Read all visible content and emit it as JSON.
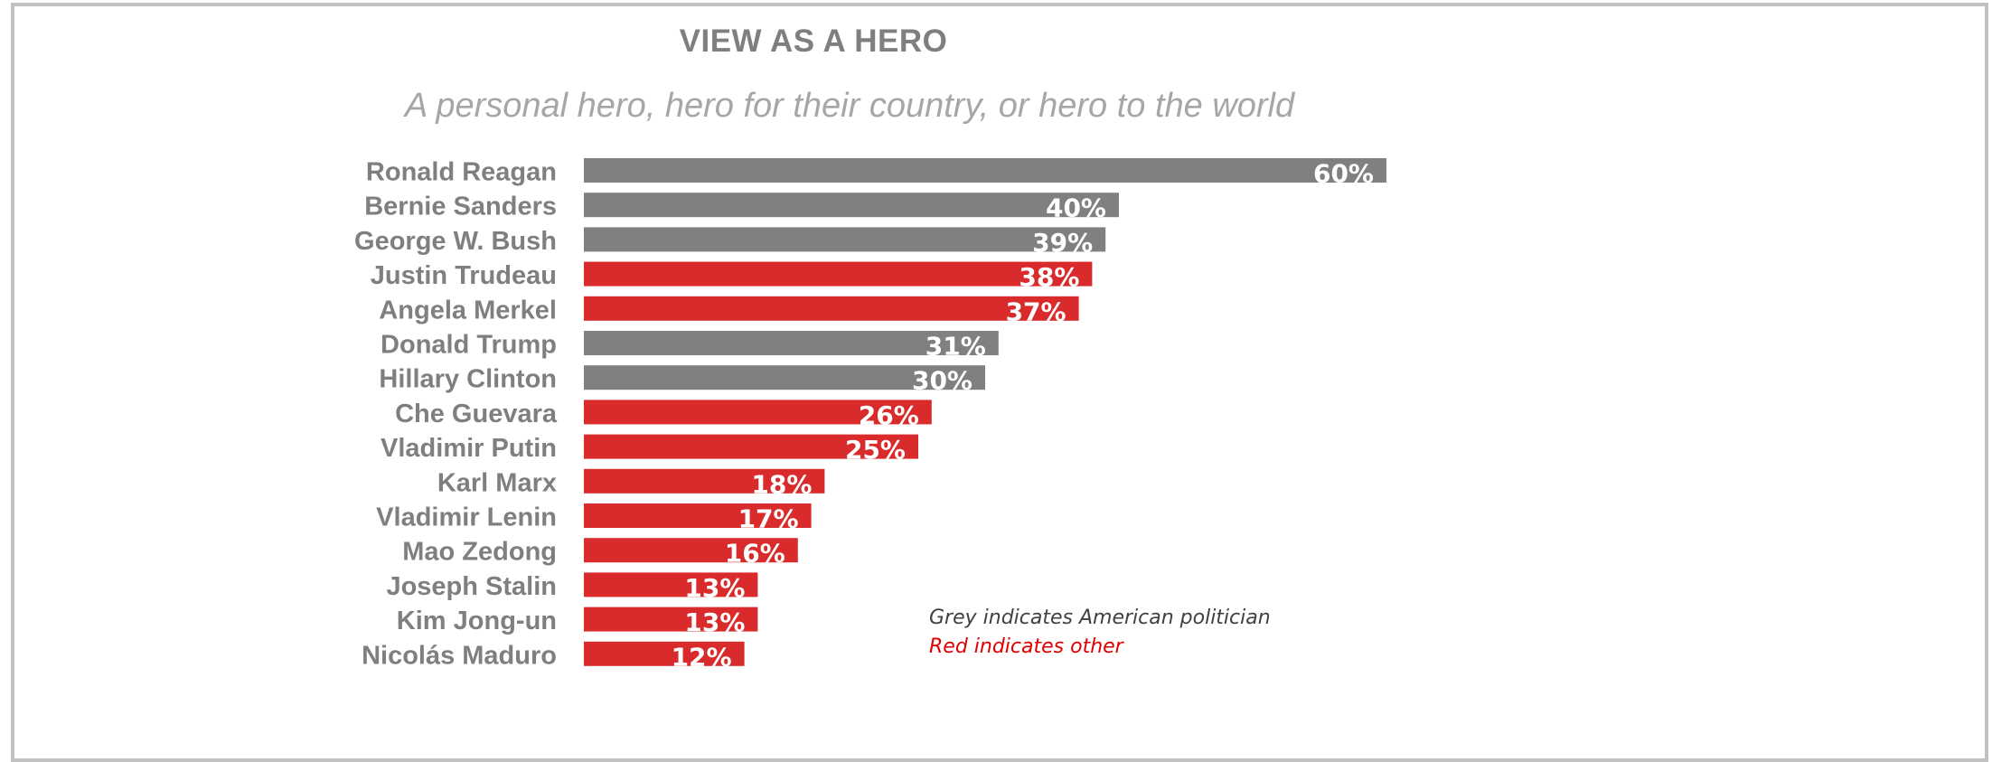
{
  "chart_data": {
    "type": "bar",
    "orientation": "horizontal",
    "title": "VIEW AS A HERO",
    "subtitle": "A personal hero, hero for their country, or hero to the world",
    "categories": [
      "Ronald Reagan",
      "Bernie Sanders",
      "George W. Bush",
      "Justin Trudeau",
      "Angela Merkel",
      "Donald Trump",
      "Hillary Clinton",
      "Che Guevara",
      "Vladimir Putin",
      "Karl Marx",
      "Vladimir Lenin",
      "Mao Zedong",
      "Joseph Stalin",
      "Kim Jong-un",
      "Nicolás Maduro"
    ],
    "values": [
      60,
      40,
      39,
      38,
      37,
      31,
      30,
      26,
      25,
      18,
      17,
      16,
      13,
      13,
      12
    ],
    "labels": [
      "60%",
      "40%",
      "39%",
      "38%",
      "37%",
      "31%",
      "30%",
      "26%",
      "25%",
      "18%",
      "17%",
      "16%",
      "13%",
      "13%",
      "12%"
    ],
    "groups": [
      "american",
      "american",
      "american",
      "other",
      "other",
      "american",
      "american",
      "other",
      "other",
      "other",
      "other",
      "other",
      "other",
      "other",
      "other"
    ],
    "group_colors": {
      "american": "#808080",
      "other": "#d92b2b"
    },
    "legend": {
      "grey": "Grey indicates American politician",
      "red": "Red indicates other"
    },
    "xlim": [
      0,
      60
    ],
    "grid": false,
    "xlabel": "",
    "ylabel": ""
  }
}
